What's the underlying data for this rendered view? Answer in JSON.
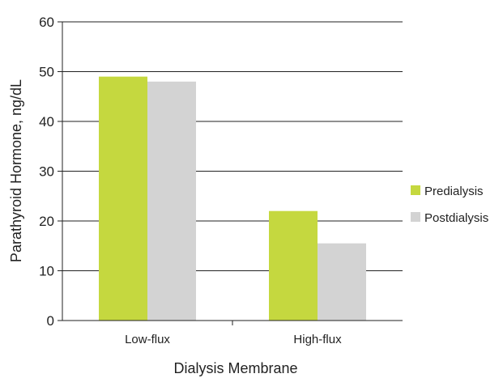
{
  "chart_data": {
    "type": "bar",
    "categories": [
      "Low-flux",
      "High-flux"
    ],
    "series": [
      {
        "name": "Predialysis",
        "values": [
          49,
          22
        ],
        "color": "#c5d83f"
      },
      {
        "name": "Postdialysis",
        "values": [
          48,
          15.5
        ],
        "color": "#d3d3d3"
      }
    ],
    "xlabel": "Dialysis Membrane",
    "ylabel": "Parathyroid Hormone, ng/dL",
    "ylim": [
      0,
      60
    ],
    "yticks": [
      "0",
      "10",
      "20",
      "30",
      "40",
      "50",
      "60"
    ],
    "grid": true,
    "legend_position": "right"
  }
}
